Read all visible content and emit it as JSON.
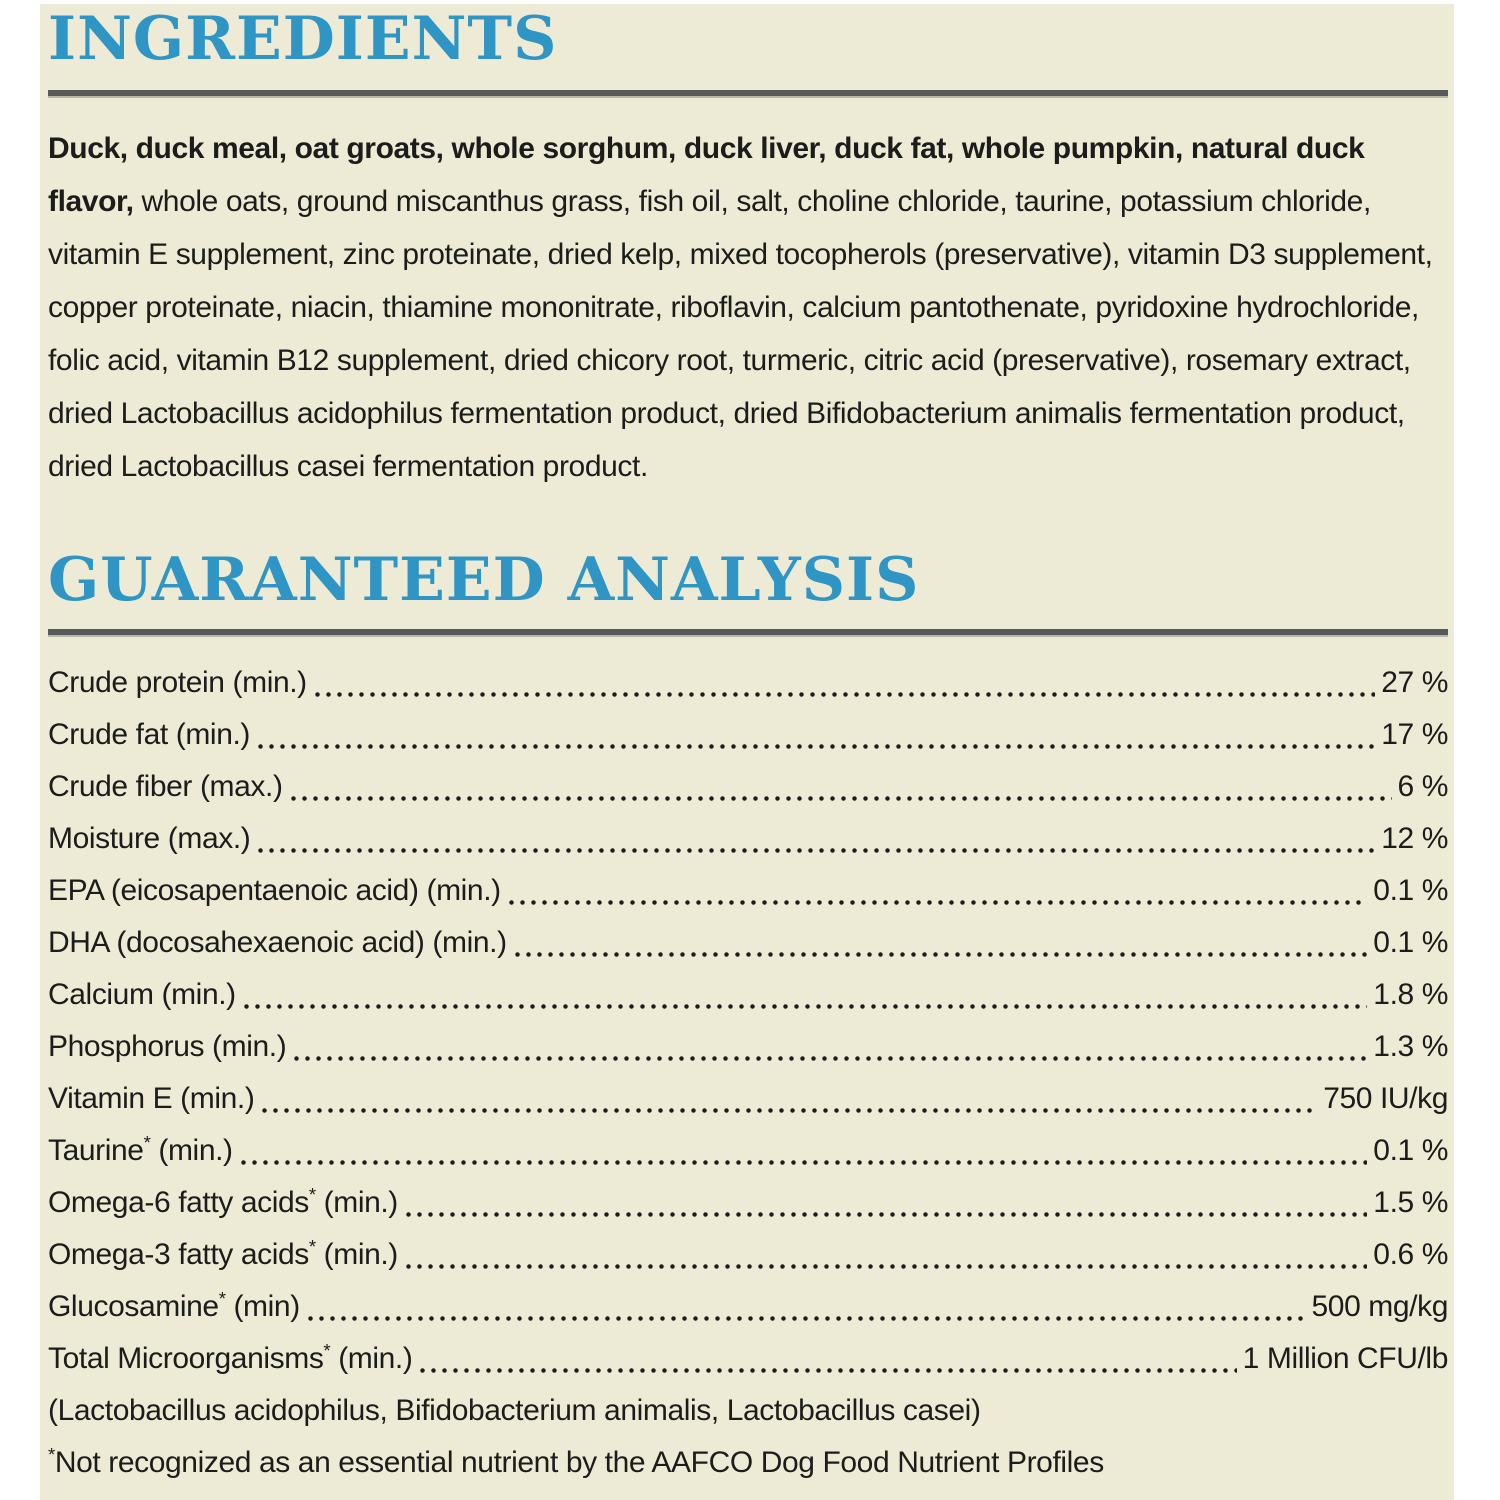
{
  "colors": {
    "background_cream": "#edead6",
    "heading_blue": "#2e95c4",
    "rule_gray": "#58595b",
    "body_text": "#1c1c1a"
  },
  "ingredients": {
    "heading": "INGREDIENTS",
    "bold_text": "Duck, duck meal, oat groats, whole sorghum, duck liver, duck fat, whole pumpkin, natural duck flavor,",
    "regular_text": " whole oats, ground miscanthus grass, fish oil, salt, choline chloride, taurine, potassium chloride, vitamin E supplement, zinc proteinate, dried kelp, mixed tocopherols (preservative), vitamin D3 supplement, copper proteinate, niacin, thiamine mononitrate, riboflavin, calcium pantothenate, pyridoxine hydrochloride, folic acid, vitamin B12 supplement, dried chicory root, turmeric, citric acid (preservative), rosemary extract, dried Lactobacillus acidophilus fermentation product, dried Bifidobacterium animalis fermentation product, dried Lactobacillus casei fermentation product."
  },
  "analysis": {
    "heading": "GUARANTEED ANALYSIS",
    "rows": [
      {
        "name": "Crude protein",
        "star": "",
        "qualifier": " (min.)",
        "value": "27 %"
      },
      {
        "name": "Crude fat",
        "star": "",
        "qualifier": " (min.)",
        "value": "17 %"
      },
      {
        "name": "Crude fiber",
        "star": "",
        "qualifier": " (max.)",
        "value": "6 %"
      },
      {
        "name": "Moisture",
        "star": "",
        "qualifier": " (max.)",
        "value": "12 %"
      },
      {
        "name": "EPA (eicosapentaenoic acid)",
        "star": "",
        "qualifier": " (min.)",
        "value": "0.1 %"
      },
      {
        "name": "DHA (docosahexaenoic acid)",
        "star": "",
        "qualifier": " (min.)",
        "value": "0.1 %"
      },
      {
        "name": "Calcium",
        "star": "",
        "qualifier": " (min.)",
        "value": "1.8 %"
      },
      {
        "name": "Phosphorus",
        "star": "",
        "qualifier": " (min.)",
        "value": "1.3 %"
      },
      {
        "name": "Vitamin E",
        "star": "",
        "qualifier": " (min.)",
        "value": "750 IU/kg"
      },
      {
        "name": "Taurine",
        "star": "*",
        "qualifier": " (min.)",
        "value": "0.1 %"
      },
      {
        "name": "Omega-6 fatty acids",
        "star": "*",
        "qualifier": " (min.)",
        "value": "1.5 %"
      },
      {
        "name": "Omega-3 fatty acids",
        "star": "*",
        "qualifier": " (min.)",
        "value": "0.6 %"
      },
      {
        "name": "Glucosamine",
        "star": "*",
        "qualifier": " (min)",
        "value": "500 mg/kg"
      },
      {
        "name": "Total Microorganisms",
        "star": "*",
        "qualifier": " (min.)",
        "value": "1 Million CFU/lb"
      }
    ],
    "microorganisms_note": "(Lactobacillus acidophilus, Bifidobacterium animalis, Lactobacillus casei)",
    "footnote_star": "*",
    "footnote_text": "Not recognized as an essential nutrient by the AAFCO Dog Food Nutrient Profiles"
  }
}
